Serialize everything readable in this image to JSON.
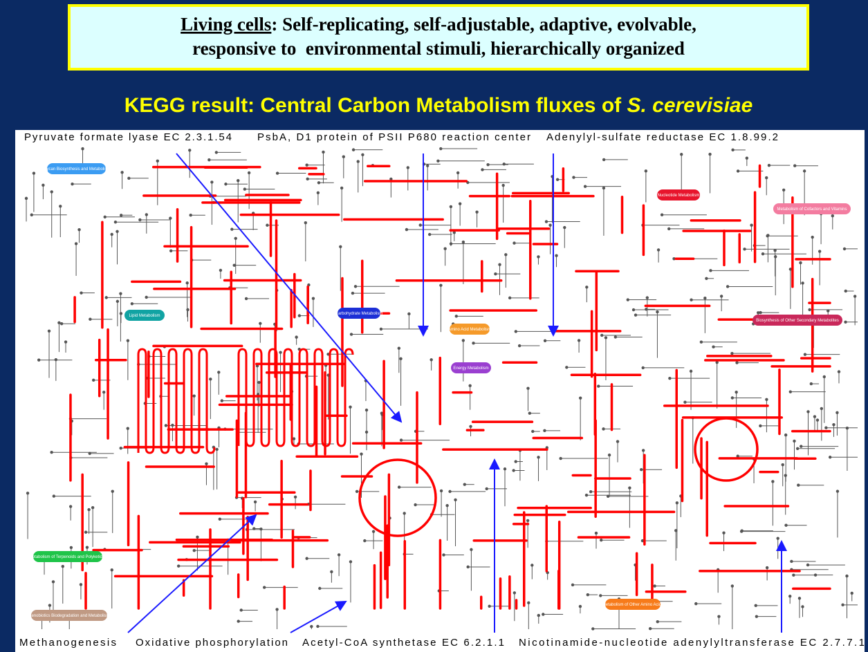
{
  "header": {
    "label": "Living cells",
    "line1": ": Self-replicating, self-adjustable, adaptive, evolvable,",
    "line2": "responsive to  environmental stimuli, hierarchically organized"
  },
  "title": {
    "text": "KEGG result: Central Carbon Metabolism fluxes of ",
    "species": "S. cerevisiae"
  },
  "top_annotations": [
    "Pyruvate formate lyase EC 2.3.1.54",
    "PsbA, D1 protein of PSII P680 reaction center",
    "Adenylyl-sulfate reductase EC 1.8.99.2"
  ],
  "bottom_annotations": [
    "Methanogenesis",
    "Oxidative phosphorylation",
    "Acetyl-CoA synthetase EC 6.2.1.1",
    "Nicotinamide-nucleotide adenylyltransferase EC 2.7.7.1"
  ],
  "regions": [
    "Glycan Biosynthesis and Metabolism",
    "Lipid Metabolism",
    "Carbohydrate Metabolism",
    "Amino Acid Metabolism",
    "Energy Metabolism",
    "Nucleotide Metabolism",
    "Metabolism of Cofactors and Vitamins",
    "Biosynthesis of Other Secondary Metabolites",
    "Metabolism of Terpenoids and Polyketides",
    "Xenobiotics Biodegradation and Metabolism",
    "Metabolism of Other Amino Acids"
  ]
}
